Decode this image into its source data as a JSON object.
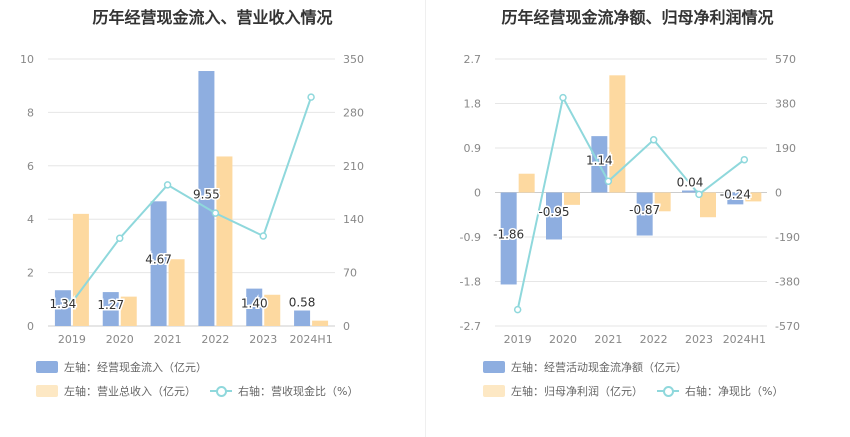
{
  "colors": {
    "bar_primary": "#8eaee0",
    "bar_secondary": "#fdd9a0",
    "line": "#8fd8dc",
    "grid": "#e6e6e6",
    "axis_text": "#888888"
  },
  "chart_data": [
    {
      "type": "bar",
      "title": "历年经营现金流入、营业收入情况",
      "categories": [
        "2019",
        "2020",
        "2021",
        "2022",
        "2023",
        "2024H1"
      ],
      "y_left": {
        "ylim": [
          0,
          10
        ],
        "ticks": [
          "0",
          "2",
          "4",
          "6",
          "8",
          "10"
        ]
      },
      "y_right": {
        "ylim": [
          0,
          350
        ],
        "ticks": [
          "0",
          "70",
          "140",
          "210",
          "280",
          "350"
        ]
      },
      "series": [
        {
          "name": "左轴：经营现金流入（亿元）",
          "kind": "bar",
          "axis": "left",
          "values": [
            1.34,
            1.27,
            4.67,
            9.55,
            1.4,
            0.58
          ],
          "labels": [
            "1.34",
            "1.27",
            "4.67",
            "9.55",
            "1.40",
            "0.58"
          ]
        },
        {
          "name": "左轴：营业总收入（亿元）",
          "kind": "bar",
          "axis": "left",
          "values": [
            4.2,
            1.1,
            2.5,
            6.35,
            1.17,
            0.2
          ]
        },
        {
          "name": "右轴：营收现金比（%）",
          "kind": "line",
          "axis": "right",
          "values": [
            31,
            115,
            185,
            148,
            118,
            300
          ]
        }
      ]
    },
    {
      "type": "bar",
      "title": "历年经营现金流净额、归母净利润情况",
      "categories": [
        "2019",
        "2020",
        "2021",
        "2022",
        "2023",
        "2024H1"
      ],
      "y_left": {
        "ylim": [
          -2.7,
          2.7
        ],
        "ticks": [
          "-2.7",
          "-1.8",
          "-0.9",
          "0",
          "0.9",
          "1.8",
          "2.7"
        ]
      },
      "y_right": {
        "ylim": [
          -570,
          570
        ],
        "ticks": [
          "-570",
          "-380",
          "-190",
          "0",
          "190",
          "380",
          "570"
        ]
      },
      "series": [
        {
          "name": "左轴：经营活动现金流净额（亿元）",
          "kind": "bar",
          "axis": "left",
          "values": [
            -1.86,
            -0.95,
            1.14,
            -0.87,
            0.04,
            -0.24
          ],
          "labels": [
            "-1.86",
            "-0.95",
            "1.14",
            "-0.87",
            "0.04",
            "-0.24"
          ]
        },
        {
          "name": "左轴：归母净利润（亿元）",
          "kind": "bar",
          "axis": "left",
          "values": [
            0.38,
            -0.25,
            2.37,
            -0.38,
            -0.5,
            -0.18
          ]
        },
        {
          "name": "右轴：净现比（%）",
          "kind": "line",
          "axis": "right",
          "values": [
            -500,
            405,
            48,
            225,
            -8,
            140
          ]
        }
      ]
    }
  ]
}
